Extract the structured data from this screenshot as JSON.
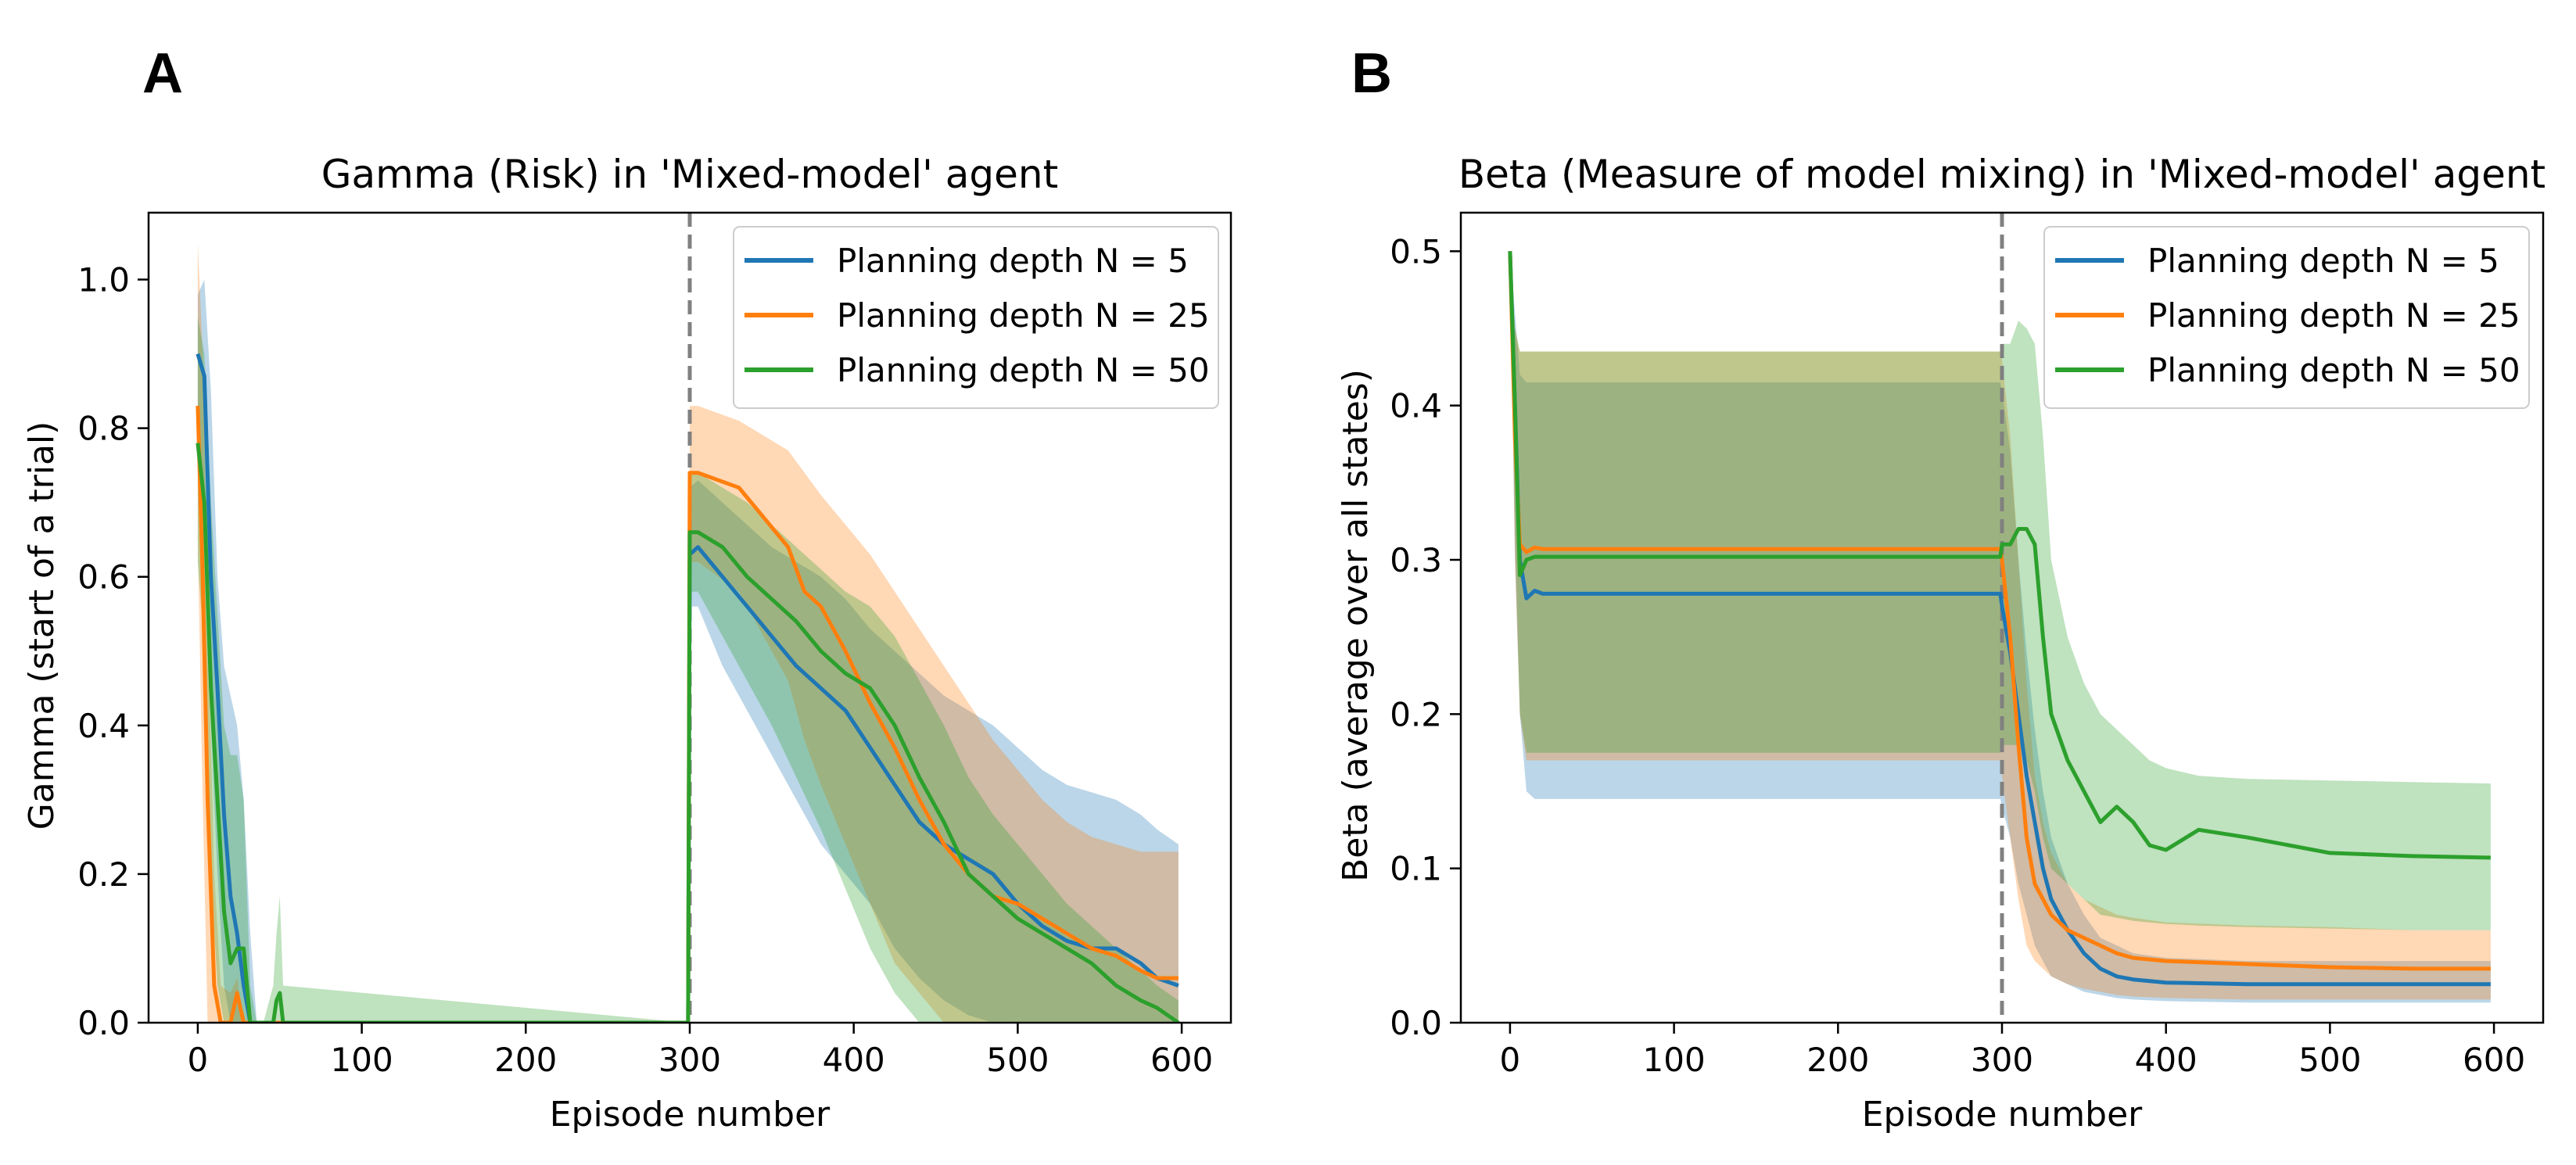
{
  "colors": {
    "n5": "#1f77b4",
    "n25": "#ff7f0e",
    "n50": "#2ca02c",
    "vline": "#808080"
  },
  "chart_data": [
    {
      "panel_label": "A",
      "type": "line",
      "title": "Gamma (Risk) in 'Mixed-model' agent",
      "xlabel": "Episode number",
      "ylabel": "Gamma (start of a trial)",
      "xlim": [
        -30,
        630
      ],
      "ylim": [
        0,
        1.09
      ],
      "xticks": [
        0,
        100,
        200,
        300,
        400,
        500,
        600
      ],
      "yticks": [
        0.0,
        0.2,
        0.4,
        0.6,
        0.8,
        1.0
      ],
      "vline_x": 300,
      "legend_position": "top-right",
      "series": [
        {
          "key": "n5",
          "name": "Planning depth N = 5",
          "x": [
            0,
            4,
            8,
            12,
            16,
            20,
            24,
            28,
            32,
            36,
            299,
            300,
            305,
            320,
            335,
            350,
            365,
            380,
            395,
            410,
            425,
            440,
            455,
            470,
            485,
            500,
            515,
            530,
            545,
            560,
            575,
            585,
            598
          ],
          "y": [
            0.9,
            0.87,
            0.6,
            0.45,
            0.28,
            0.17,
            0.12,
            0.05,
            0.0,
            0.0,
            0.0,
            0.63,
            0.64,
            0.6,
            0.56,
            0.52,
            0.48,
            0.45,
            0.42,
            0.37,
            0.32,
            0.27,
            0.24,
            0.22,
            0.2,
            0.16,
            0.13,
            0.11,
            0.1,
            0.1,
            0.08,
            0.06,
            0.05
          ],
          "lower": [
            0.78,
            0.72,
            0.4,
            0.2,
            0.05,
            0.0,
            0.0,
            0.0,
            0.0,
            0.0,
            0.0,
            0.56,
            0.56,
            0.48,
            0.42,
            0.36,
            0.3,
            0.24,
            0.2,
            0.16,
            0.1,
            0.06,
            0.03,
            0.01,
            0.0,
            0.0,
            0.0,
            0.0,
            0.0,
            0.0,
            0.0,
            0.0,
            0.0
          ],
          "upper": [
            0.98,
            1.0,
            0.85,
            0.6,
            0.48,
            0.44,
            0.4,
            0.3,
            0.12,
            0.0,
            0.0,
            0.72,
            0.73,
            0.7,
            0.67,
            0.64,
            0.62,
            0.6,
            0.57,
            0.53,
            0.5,
            0.47,
            0.44,
            0.42,
            0.4,
            0.37,
            0.34,
            0.32,
            0.31,
            0.3,
            0.28,
            0.26,
            0.24
          ]
        },
        {
          "key": "n25",
          "name": "Planning depth N = 25",
          "x": [
            0,
            3,
            6,
            10,
            14,
            20,
            24,
            28,
            32,
            36,
            299,
            300,
            305,
            330,
            345,
            360,
            370,
            380,
            395,
            410,
            425,
            440,
            455,
            470,
            485,
            500,
            515,
            530,
            545,
            560,
            575,
            585,
            598
          ],
          "y": [
            0.83,
            0.6,
            0.3,
            0.05,
            0.0,
            0.0,
            0.04,
            0.0,
            0.0,
            0.0,
            0.0,
            0.74,
            0.74,
            0.72,
            0.68,
            0.64,
            0.58,
            0.56,
            0.5,
            0.43,
            0.37,
            0.3,
            0.24,
            0.2,
            0.17,
            0.16,
            0.14,
            0.12,
            0.1,
            0.09,
            0.07,
            0.06,
            0.06
          ],
          "lower": [
            0.65,
            0.3,
            0.0,
            0.0,
            0.0,
            0.0,
            0.0,
            0.0,
            0.0,
            0.0,
            0.0,
            0.62,
            0.62,
            0.58,
            0.52,
            0.46,
            0.38,
            0.32,
            0.24,
            0.16,
            0.08,
            0.04,
            0.0,
            0.0,
            0.0,
            0.0,
            0.0,
            0.0,
            0.0,
            0.0,
            0.0,
            0.0,
            0.0
          ],
          "upper": [
            1.05,
            0.9,
            0.55,
            0.2,
            0.05,
            0.04,
            0.06,
            0.0,
            0.0,
            0.0,
            0.0,
            0.83,
            0.83,
            0.81,
            0.79,
            0.77,
            0.74,
            0.71,
            0.67,
            0.63,
            0.58,
            0.53,
            0.48,
            0.43,
            0.38,
            0.34,
            0.3,
            0.27,
            0.25,
            0.24,
            0.23,
            0.23,
            0.23
          ]
        },
        {
          "key": "n50",
          "name": "Planning depth N = 50",
          "x": [
            0,
            4,
            8,
            12,
            16,
            20,
            24,
            28,
            32,
            36,
            40,
            46,
            48,
            50,
            52,
            299,
            300,
            305,
            320,
            335,
            350,
            365,
            380,
            395,
            410,
            425,
            440,
            455,
            470,
            485,
            500,
            515,
            530,
            545,
            560,
            575,
            585,
            598
          ],
          "y": [
            0.78,
            0.7,
            0.45,
            0.3,
            0.15,
            0.08,
            0.1,
            0.1,
            0.0,
            0.0,
            0.0,
            0.0,
            0.03,
            0.04,
            0.0,
            0.0,
            0.66,
            0.66,
            0.64,
            0.6,
            0.57,
            0.54,
            0.5,
            0.47,
            0.45,
            0.4,
            0.33,
            0.27,
            0.2,
            0.17,
            0.14,
            0.12,
            0.1,
            0.08,
            0.05,
            0.03,
            0.02,
            0.0
          ],
          "lower": [
            0.62,
            0.5,
            0.2,
            0.05,
            0.0,
            0.0,
            0.0,
            0.0,
            0.0,
            0.0,
            0.0,
            0.0,
            0.0,
            0.0,
            0.0,
            0.0,
            0.58,
            0.58,
            0.52,
            0.46,
            0.4,
            0.33,
            0.26,
            0.18,
            0.1,
            0.04,
            0.0,
            0.0,
            0.0,
            0.0,
            0.0,
            0.0,
            0.0,
            0.0,
            0.0,
            0.0,
            0.0,
            0.0
          ],
          "upper": [
            0.95,
            0.9,
            0.7,
            0.55,
            0.4,
            0.36,
            0.36,
            0.3,
            0.05,
            0.0,
            0.0,
            0.05,
            0.12,
            0.17,
            0.05,
            0.0,
            0.74,
            0.74,
            0.72,
            0.7,
            0.67,
            0.64,
            0.61,
            0.58,
            0.56,
            0.52,
            0.46,
            0.4,
            0.33,
            0.28,
            0.24,
            0.2,
            0.16,
            0.13,
            0.1,
            0.07,
            0.05,
            0.03
          ]
        }
      ]
    },
    {
      "panel_label": "B",
      "type": "line",
      "title": "Beta (Measure of model mixing) in 'Mixed-model' agent",
      "xlabel": "Episode number",
      "ylabel": "Beta (average over all states)",
      "xlim": [
        -30,
        630
      ],
      "ylim": [
        0,
        0.525
      ],
      "xticks": [
        0,
        100,
        200,
        300,
        400,
        500,
        600
      ],
      "yticks": [
        0.0,
        0.1,
        0.2,
        0.3,
        0.4,
        0.5
      ],
      "vline_x": 300,
      "legend_position": "top-right",
      "series": [
        {
          "key": "n5",
          "name": "Planning depth N = 5",
          "x": [
            0,
            3,
            6,
            10,
            15,
            20,
            299,
            300,
            305,
            310,
            315,
            320,
            325,
            330,
            340,
            350,
            360,
            370,
            380,
            400,
            450,
            500,
            550,
            598
          ],
          "y": [
            0.5,
            0.4,
            0.3,
            0.275,
            0.28,
            0.278,
            0.278,
            0.27,
            0.24,
            0.2,
            0.16,
            0.13,
            0.1,
            0.08,
            0.06,
            0.045,
            0.035,
            0.03,
            0.028,
            0.026,
            0.025,
            0.025,
            0.025,
            0.025
          ],
          "lower": [
            0.5,
            0.3,
            0.2,
            0.15,
            0.145,
            0.145,
            0.145,
            0.14,
            0.12,
            0.09,
            0.07,
            0.05,
            0.04,
            0.03,
            0.025,
            0.02,
            0.018,
            0.016,
            0.015,
            0.014,
            0.013,
            0.013,
            0.013,
            0.013
          ],
          "upper": [
            0.5,
            0.46,
            0.42,
            0.415,
            0.415,
            0.415,
            0.415,
            0.41,
            0.37,
            0.3,
            0.24,
            0.19,
            0.15,
            0.12,
            0.09,
            0.07,
            0.055,
            0.05,
            0.045,
            0.042,
            0.04,
            0.04,
            0.04,
            0.04
          ]
        },
        {
          "key": "n25",
          "name": "Planning depth N = 25",
          "x": [
            0,
            3,
            6,
            10,
            15,
            20,
            299,
            300,
            305,
            310,
            315,
            320,
            325,
            330,
            340,
            350,
            360,
            370,
            380,
            400,
            450,
            500,
            550,
            598
          ],
          "y": [
            0.5,
            0.38,
            0.31,
            0.305,
            0.308,
            0.307,
            0.307,
            0.3,
            0.25,
            0.18,
            0.12,
            0.09,
            0.08,
            0.07,
            0.06,
            0.055,
            0.05,
            0.045,
            0.042,
            0.04,
            0.038,
            0.036,
            0.035,
            0.035
          ],
          "lower": [
            0.5,
            0.3,
            0.2,
            0.17,
            0.17,
            0.17,
            0.17,
            0.16,
            0.12,
            0.08,
            0.05,
            0.04,
            0.035,
            0.03,
            0.025,
            0.022,
            0.02,
            0.018,
            0.017,
            0.016,
            0.015,
            0.015,
            0.015,
            0.015
          ],
          "upper": [
            0.5,
            0.45,
            0.435,
            0.435,
            0.435,
            0.435,
            0.435,
            0.43,
            0.38,
            0.3,
            0.22,
            0.16,
            0.13,
            0.11,
            0.09,
            0.08,
            0.075,
            0.07,
            0.068,
            0.065,
            0.063,
            0.062,
            0.06,
            0.06
          ]
        },
        {
          "key": "n50",
          "name": "Planning depth N = 50",
          "x": [
            0,
            3,
            6,
            10,
            15,
            20,
            299,
            300,
            305,
            310,
            315,
            320,
            325,
            330,
            340,
            350,
            360,
            370,
            380,
            390,
            400,
            420,
            450,
            500,
            550,
            598
          ],
          "y": [
            0.5,
            0.4,
            0.29,
            0.3,
            0.302,
            0.302,
            0.302,
            0.31,
            0.31,
            0.32,
            0.32,
            0.31,
            0.25,
            0.2,
            0.17,
            0.15,
            0.13,
            0.14,
            0.13,
            0.115,
            0.112,
            0.125,
            0.12,
            0.11,
            0.108,
            0.107
          ],
          "lower": [
            0.5,
            0.32,
            0.2,
            0.175,
            0.175,
            0.175,
            0.175,
            0.18,
            0.18,
            0.18,
            0.17,
            0.15,
            0.12,
            0.1,
            0.09,
            0.08,
            0.07,
            0.068,
            0.066,
            0.065,
            0.064,
            0.063,
            0.062,
            0.061,
            0.06,
            0.06
          ],
          "upper": [
            0.5,
            0.45,
            0.435,
            0.435,
            0.435,
            0.435,
            0.435,
            0.44,
            0.44,
            0.455,
            0.45,
            0.44,
            0.38,
            0.3,
            0.25,
            0.22,
            0.2,
            0.19,
            0.18,
            0.17,
            0.165,
            0.16,
            0.158,
            0.157,
            0.156,
            0.155
          ]
        }
      ]
    }
  ]
}
